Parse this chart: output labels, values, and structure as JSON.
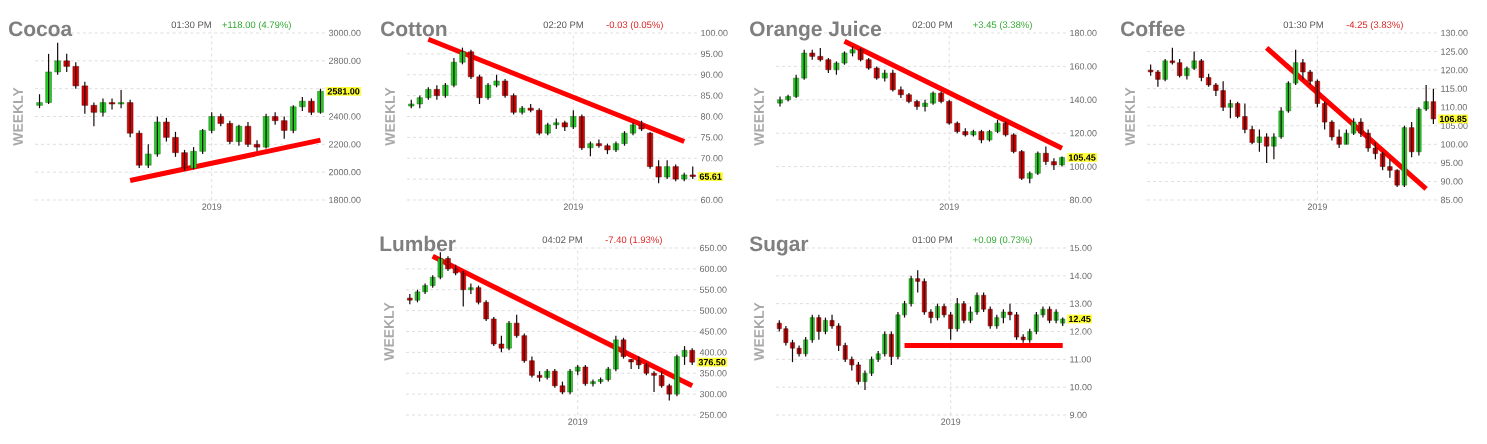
{
  "chart_data": [
    {
      "type": "candlestick",
      "title": "Cocoa",
      "ylabel": "WEEKLY",
      "categories": [
        null,
        null,
        null,
        null,
        null,
        null,
        null,
        null,
        null,
        null,
        null,
        null,
        null,
        null,
        null,
        null,
        null,
        null,
        null,
        "2019",
        null,
        null,
        null,
        null,
        null,
        null,
        null,
        null,
        null,
        null,
        null,
        null
      ],
      "ohlc": [
        [
          2480,
          2560,
          2460,
          2500
        ],
        [
          2500,
          2850,
          2490,
          2720
        ],
        [
          2720,
          2930,
          2700,
          2800
        ],
        [
          2800,
          2850,
          2720,
          2760
        ],
        [
          2760,
          2790,
          2600,
          2620
        ],
        [
          2620,
          2650,
          2420,
          2480
        ],
        [
          2480,
          2500,
          2330,
          2430
        ],
        [
          2430,
          2530,
          2400,
          2500
        ],
        [
          2500,
          2530,
          2450,
          2490
        ],
        [
          2490,
          2590,
          2460,
          2500
        ],
        [
          2500,
          2520,
          2250,
          2280
        ],
        [
          2280,
          2300,
          2030,
          2050
        ],
        [
          2050,
          2200,
          2030,
          2130
        ],
        [
          2130,
          2400,
          2110,
          2360
        ],
        [
          2360,
          2390,
          2220,
          2250
        ],
        [
          2250,
          2290,
          2110,
          2140
        ],
        [
          2140,
          2160,
          2010,
          2030
        ],
        [
          2030,
          2180,
          2020,
          2150
        ],
        [
          2150,
          2310,
          2130,
          2300
        ],
        [
          2300,
          2430,
          2280,
          2400
        ],
        [
          2400,
          2420,
          2330,
          2350
        ],
        [
          2350,
          2370,
          2200,
          2220
        ],
        [
          2220,
          2340,
          2190,
          2330
        ],
        [
          2330,
          2360,
          2180,
          2200
        ],
        [
          2200,
          2230,
          2150,
          2180
        ],
        [
          2180,
          2420,
          2170,
          2400
        ],
        [
          2400,
          2430,
          2340,
          2370
        ],
        [
          2370,
          2400,
          2240,
          2300
        ],
        [
          2300,
          2480,
          2280,
          2470
        ],
        [
          2470,
          2540,
          2440,
          2510
        ],
        [
          2510,
          2530,
          2410,
          2430
        ],
        [
          2430,
          2600,
          2420,
          2581
        ]
      ],
      "series": [
        {
          "type": "line",
          "color": "#ff0000",
          "values": [
            null,
            null,
            null,
            null,
            null,
            null,
            null,
            null,
            null,
            null,
            1940,
            null,
            null,
            null,
            null,
            null,
            null,
            null,
            null,
            null,
            null,
            null,
            null,
            null,
            null,
            null,
            null,
            null,
            null,
            null,
            null,
            2230
          ]
        }
      ],
      "ylim": [
        1800,
        3000
      ],
      "yticks": [
        {
          "value": 1800,
          "label": "1800.00"
        },
        {
          "value": 2000,
          "label": "2000.00"
        },
        {
          "value": 2200,
          "label": "2200.00"
        },
        {
          "value": 2400,
          "label": "2400.00"
        },
        {
          "value": 2600,
          "label": null
        },
        {
          "value": 2800,
          "label": "2800.00"
        },
        {
          "value": 3000,
          "label": "3000.00"
        }
      ],
      "grid": true,
      "annotations": [
        "01:30 PM",
        "+118.00 (4.79%)",
        "2581.00"
      ]
    },
    {
      "type": "candlestick",
      "title": "Cotton",
      "ylabel": "WEEKLY",
      "categories": [
        null,
        null,
        null,
        null,
        null,
        null,
        null,
        null,
        null,
        null,
        null,
        null,
        null,
        null,
        null,
        null,
        null,
        null,
        null,
        "2019",
        null,
        null,
        null,
        null,
        null,
        null,
        null,
        null,
        null,
        null,
        null,
        null,
        null,
        null
      ],
      "ohlc": [
        [
          82.5,
          84,
          82,
          83
        ],
        [
          83,
          85,
          82,
          84.5
        ],
        [
          84.5,
          87,
          84,
          86.5
        ],
        [
          86.5,
          87.5,
          84,
          85
        ],
        [
          85,
          88,
          84.5,
          87.5
        ],
        [
          87.5,
          94,
          87,
          93
        ],
        [
          93,
          96.5,
          92.5,
          95.5
        ],
        [
          95.5,
          96,
          89,
          89.5
        ],
        [
          89.5,
          90,
          83,
          84.5
        ],
        [
          84.5,
          88,
          84,
          87.5
        ],
        [
          87.5,
          90,
          87,
          88.5
        ],
        [
          88.5,
          89,
          84.5,
          85
        ],
        [
          85,
          85.5,
          80.5,
          81
        ],
        [
          81,
          82.5,
          80.5,
          82
        ],
        [
          82,
          83,
          81,
          81.5
        ],
        [
          81.5,
          82,
          75.5,
          76
        ],
        [
          76,
          78.5,
          75.5,
          78
        ],
        [
          78,
          79.5,
          77,
          78.5
        ],
        [
          78.5,
          79,
          76.5,
          77.5
        ],
        [
          77.5,
          81.5,
          77,
          80
        ],
        [
          80,
          80.5,
          72,
          72.5
        ],
        [
          72.5,
          74,
          70.5,
          73.5
        ],
        [
          73.5,
          74.5,
          72.5,
          73
        ],
        [
          73,
          73.5,
          71,
          72
        ],
        [
          72,
          74,
          71.5,
          73.5
        ],
        [
          73.5,
          76.5,
          73,
          76
        ],
        [
          76,
          78.5,
          75.5,
          78
        ],
        [
          78,
          79,
          76.5,
          77
        ],
        [
          76,
          76.3,
          67.5,
          68
        ],
        [
          68,
          69.5,
          64,
          65.5
        ],
        [
          65.5,
          69.5,
          65,
          68
        ],
        [
          68,
          68.5,
          64.5,
          65
        ],
        [
          65,
          66.5,
          64.5,
          66
        ],
        [
          66,
          68,
          65,
          65.61
        ]
      ],
      "series": [
        {
          "type": "line",
          "color": "#ff0000",
          "values": [
            null,
            null,
            98.5,
            null,
            null,
            null,
            null,
            null,
            null,
            null,
            null,
            null,
            null,
            null,
            null,
            null,
            null,
            null,
            null,
            null,
            null,
            null,
            null,
            null,
            null,
            null,
            null,
            null,
            null,
            null,
            null,
            null,
            74,
            null
          ]
        }
      ],
      "ylim": [
        60,
        100
      ],
      "yticks": [
        {
          "value": 60,
          "label": "60.00"
        },
        {
          "value": 65,
          "label": null
        },
        {
          "value": 70,
          "label": "70.00"
        },
        {
          "value": 75,
          "label": "75.00"
        },
        {
          "value": 80,
          "label": "80.00"
        },
        {
          "value": 85,
          "label": "85.00"
        },
        {
          "value": 90,
          "label": "90.00"
        },
        {
          "value": 95,
          "label": "95.00"
        },
        {
          "value": 100,
          "label": "100.00"
        }
      ],
      "grid": true,
      "annotations": [
        "02:20 PM",
        "-0.03 (0.05%)",
        "65.61"
      ]
    },
    {
      "type": "candlestick",
      "title": "Orange Juice",
      "ylabel": "WEEKLY",
      "categories": [
        null,
        null,
        null,
        null,
        null,
        null,
        null,
        null,
        null,
        null,
        null,
        null,
        null,
        null,
        null,
        null,
        null,
        null,
        null,
        null,
        null,
        "2019",
        null,
        null,
        null,
        null,
        null,
        null,
        null,
        null,
        null,
        null,
        null,
        null,
        null,
        null
      ],
      "ohlc": [
        [
          138,
          142,
          136,
          140
        ],
        [
          140,
          143,
          139,
          142
        ],
        [
          142,
          155,
          141,
          153
        ],
        [
          153,
          170,
          152,
          168
        ],
        [
          168,
          170,
          164,
          166
        ],
        [
          166,
          171,
          163,
          164
        ],
        [
          164,
          165,
          156,
          158
        ],
        [
          158,
          163,
          155,
          162
        ],
        [
          162,
          169,
          161,
          168
        ],
        [
          168,
          172,
          166,
          170
        ],
        [
          170,
          171,
          163,
          164
        ],
        [
          164,
          165,
          158,
          159
        ],
        [
          159,
          160,
          152,
          153
        ],
        [
          153,
          158,
          151,
          156
        ],
        [
          156,
          158,
          145,
          146
        ],
        [
          146,
          148,
          141,
          143
        ],
        [
          143,
          144,
          138,
          139
        ],
        [
          139,
          140,
          134,
          136
        ],
        [
          136,
          140,
          133,
          138
        ],
        [
          138,
          145,
          137,
          144
        ],
        [
          144,
          145,
          138,
          139
        ],
        [
          139,
          140,
          125,
          126
        ],
        [
          126,
          127,
          120,
          121
        ],
        [
          121,
          123,
          118,
          119
        ],
        [
          119,
          122,
          118,
          121
        ],
        [
          121,
          122,
          114,
          116
        ],
        [
          116,
          122,
          115,
          121
        ],
        [
          121,
          128,
          120,
          126
        ],
        [
          126,
          127,
          118,
          119
        ],
        [
          119,
          120,
          108,
          109
        ],
        [
          109,
          110,
          92,
          93
        ],
        [
          93,
          97,
          90,
          96
        ],
        [
          96,
          109,
          95,
          108
        ],
        [
          108,
          112,
          101,
          103
        ],
        [
          103,
          105,
          98,
          101
        ],
        [
          101,
          106,
          100,
          105.45
        ]
      ],
      "series": [
        {
          "type": "line",
          "color": "#ff0000",
          "values": [
            null,
            null,
            null,
            null,
            null,
            null,
            null,
            null,
            175,
            null,
            null,
            null,
            null,
            null,
            null,
            null,
            null,
            null,
            null,
            null,
            null,
            null,
            null,
            null,
            null,
            null,
            null,
            null,
            null,
            null,
            null,
            null,
            null,
            null,
            null,
            111
          ]
        }
      ],
      "ylim": [
        80,
        180
      ],
      "yticks": [
        {
          "value": 80,
          "label": "80.00"
        },
        {
          "value": 100,
          "label": "100.00"
        },
        {
          "value": 120,
          "label": "120.00"
        },
        {
          "value": 140,
          "label": "140.00"
        },
        {
          "value": 160,
          "label": "160.00"
        },
        {
          "value": 180,
          "label": "180.00"
        }
      ],
      "grid": true,
      "annotations": [
        "02:00 PM",
        "+3.45 (3.38%)",
        "105.45"
      ]
    },
    {
      "type": "candlestick",
      "title": "Coffee",
      "ylabel": "WEEKLY",
      "categories": [
        null,
        null,
        null,
        null,
        null,
        null,
        null,
        null,
        null,
        null,
        null,
        null,
        null,
        null,
        null,
        null,
        null,
        null,
        null,
        null,
        null,
        null,
        null,
        "2019",
        null,
        null,
        null,
        null,
        null,
        null,
        null,
        null,
        null,
        null,
        null,
        null,
        null,
        null,
        null,
        null
      ],
      "ohlc": [
        [
          120,
          121.5,
          118.5,
          119.5
        ],
        [
          119.5,
          120,
          115.5,
          117.5
        ],
        [
          117.5,
          123,
          117,
          122.5
        ],
        [
          122.5,
          126,
          121.5,
          122
        ],
        [
          122,
          123,
          118,
          118.5
        ],
        [
          118.5,
          121,
          117.5,
          120.5
        ],
        [
          120.5,
          125,
          120,
          122.5
        ],
        [
          122.5,
          123,
          117,
          118
        ],
        [
          118,
          119,
          115.5,
          116
        ],
        [
          116,
          116.5,
          113,
          114.5
        ],
        [
          114.5,
          117,
          109,
          110
        ],
        [
          110,
          112,
          107,
          111
        ],
        [
          111,
          111.5,
          107,
          107.5
        ],
        [
          107.5,
          111,
          103,
          104
        ],
        [
          104,
          105,
          100,
          100.5
        ],
        [
          100.5,
          104,
          98,
          102
        ],
        [
          102,
          103,
          95,
          99.5
        ],
        [
          99.5,
          103,
          96,
          102
        ],
        [
          102,
          110,
          101.5,
          109
        ],
        [
          109,
          117,
          108.5,
          116.5
        ],
        [
          116.5,
          125.5,
          116,
          122
        ],
        [
          122,
          123,
          117.5,
          119.5
        ],
        [
          119.5,
          120,
          116,
          117
        ],
        [
          117,
          117.5,
          110,
          111
        ],
        [
          111,
          111.5,
          104,
          106
        ],
        [
          106,
          106.5,
          101,
          102
        ],
        [
          102,
          104,
          99,
          100
        ],
        [
          100,
          104,
          100,
          103
        ],
        [
          103,
          107,
          102.5,
          106
        ],
        [
          106,
          107,
          102,
          103
        ],
        [
          103,
          104,
          98,
          99
        ],
        [
          99,
          100.5,
          96,
          97.5
        ],
        [
          97.5,
          98,
          93,
          94
        ],
        [
          94,
          96,
          91,
          93
        ],
        [
          93,
          93.3,
          88.5,
          89
        ],
        [
          89,
          105,
          88.5,
          104.5
        ],
        [
          104.5,
          106,
          96.5,
          98
        ],
        [
          98,
          110,
          97,
          109.5
        ],
        [
          109.5,
          116,
          109,
          111.5
        ],
        [
          111.5,
          115,
          105.5,
          106.85
        ]
      ],
      "series": [
        {
          "type": "line",
          "color": "#ff0000",
          "values": [
            null,
            null,
            null,
            null,
            null,
            null,
            null,
            null,
            null,
            null,
            null,
            null,
            null,
            null,
            null,
            null,
            126,
            null,
            null,
            null,
            null,
            null,
            null,
            null,
            null,
            null,
            null,
            null,
            null,
            null,
            null,
            null,
            null,
            null,
            null,
            null,
            null,
            null,
            88,
            null
          ]
        }
      ],
      "ylim": [
        85,
        130
      ],
      "yticks": [
        {
          "value": 85,
          "label": "85.00"
        },
        {
          "value": 90,
          "label": "90.00"
        },
        {
          "value": 95,
          "label": "95.00"
        },
        {
          "value": 100,
          "label": "100.00"
        },
        {
          "value": 105,
          "label": "105.00"
        },
        {
          "value": 110,
          "label": "110.00"
        },
        {
          "value": 115,
          "label": "115.00"
        },
        {
          "value": 120,
          "label": "120.00"
        },
        {
          "value": 125,
          "label": "125.00"
        },
        {
          "value": 130,
          "label": "130.00"
        }
      ],
      "grid": true,
      "annotations": [
        "01:30 PM",
        "-4.25 (3.83%)",
        "106.85"
      ]
    },
    {
      "type": "candlestick",
      "title": "Lumber",
      "ylabel": "WEEKLY",
      "categories": [
        null,
        null,
        null,
        null,
        null,
        null,
        null,
        null,
        null,
        null,
        null,
        null,
        null,
        null,
        null,
        null,
        null,
        null,
        null,
        null,
        null,
        null,
        "2019",
        null,
        null,
        null,
        null,
        null,
        null,
        null,
        null,
        null,
        null,
        null,
        null,
        null,
        null,
        null
      ],
      "ohlc": [
        [
          530,
          540,
          515,
          525
        ],
        [
          525,
          550,
          520,
          545
        ],
        [
          545,
          565,
          540,
          560
        ],
        [
          560,
          585,
          555,
          580
        ],
        [
          580,
          640,
          575,
          625
        ],
        [
          625,
          630,
          595,
          600
        ],
        [
          600,
          610,
          585,
          590
        ],
        [
          590,
          595,
          510,
          550
        ],
        [
          550,
          565,
          540,
          555
        ],
        [
          555,
          560,
          515,
          520
        ],
        [
          520,
          525,
          475,
          480
        ],
        [
          480,
          485,
          415,
          420
        ],
        [
          420,
          440,
          400,
          410
        ],
        [
          410,
          475,
          405,
          470
        ],
        [
          470,
          490,
          435,
          440
        ],
        [
          440,
          445,
          375,
          380
        ],
        [
          380,
          390,
          340,
          345
        ],
        [
          345,
          355,
          330,
          340
        ],
        [
          340,
          360,
          335,
          355
        ],
        [
          355,
          360,
          315,
          320
        ],
        [
          320,
          330,
          300,
          305
        ],
        [
          305,
          360,
          300,
          355
        ],
        [
          355,
          370,
          345,
          365
        ],
        [
          365,
          370,
          320,
          325
        ],
        [
          325,
          335,
          318,
          330
        ],
        [
          330,
          340,
          325,
          335
        ],
        [
          335,
          365,
          330,
          360
        ],
        [
          360,
          440,
          355,
          430
        ],
        [
          430,
          435,
          385,
          390
        ],
        [
          383,
          384,
          360,
          377
        ],
        [
          380,
          390,
          360,
          370
        ],
        [
          370,
          375,
          345,
          350
        ],
        [
          350,
          355,
          305,
          345
        ],
        [
          345,
          355,
          315,
          320
        ],
        [
          320,
          325,
          285,
          300
        ],
        [
          300,
          395,
          295,
          390
        ],
        [
          390,
          415,
          370,
          405
        ],
        [
          405,
          410,
          370,
          376.5
        ]
      ],
      "series": [
        {
          "type": "line",
          "color": "#ff0000",
          "values": [
            null,
            null,
            null,
            630,
            null,
            null,
            null,
            null,
            null,
            null,
            null,
            null,
            null,
            null,
            null,
            null,
            null,
            null,
            null,
            null,
            null,
            null,
            null,
            null,
            null,
            null,
            null,
            null,
            null,
            null,
            null,
            null,
            null,
            null,
            null,
            null,
            null,
            320
          ]
        }
      ],
      "ylim": [
        250,
        650
      ],
      "yticks": [
        {
          "value": 250,
          "label": "250.00"
        },
        {
          "value": 300,
          "label": "300.00"
        },
        {
          "value": 350,
          "label": "350.00"
        },
        {
          "value": 400,
          "label": "400.00"
        },
        {
          "value": 450,
          "label": "450.00"
        },
        {
          "value": 500,
          "label": "500.00"
        },
        {
          "value": 550,
          "label": "550.00"
        },
        {
          "value": 600,
          "label": "600.00"
        },
        {
          "value": 650,
          "label": "650.00"
        }
      ],
      "grid": true,
      "annotations": [
        "04:02 PM",
        "-7.40 (1.93%)",
        "376.50"
      ]
    },
    {
      "type": "candlestick",
      "title": "Sugar",
      "ylabel": "WEEKLY",
      "categories": [
        null,
        null,
        null,
        null,
        null,
        null,
        null,
        null,
        null,
        null,
        null,
        null,
        null,
        null,
        null,
        null,
        null,
        null,
        null,
        null,
        null,
        null,
        null,
        null,
        null,
        null,
        "2019",
        null,
        null,
        null,
        null,
        null,
        null,
        null,
        null,
        null,
        null,
        null,
        null,
        null,
        null,
        null,
        null,
        null
      ],
      "ohlc": [
        [
          12.3,
          12.4,
          12.0,
          12.1
        ],
        [
          12.1,
          12.2,
          11.5,
          11.6
        ],
        [
          11.6,
          11.7,
          10.9,
          11.4
        ],
        [
          11.4,
          11.5,
          11.1,
          11.2
        ],
        [
          11.2,
          11.8,
          11.1,
          11.7
        ],
        [
          11.7,
          12.6,
          11.6,
          12.5
        ],
        [
          12.5,
          12.6,
          11.7,
          12.0
        ],
        [
          12.0,
          12.5,
          11.9,
          12.4
        ],
        [
          12.4,
          12.6,
          12.1,
          12.2
        ],
        [
          12.2,
          12.3,
          11.3,
          11.5
        ],
        [
          11.5,
          11.6,
          10.9,
          11.0
        ],
        [
          11.0,
          11.1,
          10.6,
          10.8
        ],
        [
          10.8,
          10.9,
          10.1,
          10.2
        ],
        [
          10.2,
          10.6,
          9.9,
          10.5
        ],
        [
          10.5,
          11.1,
          10.4,
          11.0
        ],
        [
          11.0,
          11.3,
          10.9,
          11.2
        ],
        [
          11.2,
          12.0,
          11.1,
          11.9
        ],
        [
          11.9,
          12.0,
          10.8,
          11.1
        ],
        [
          11.1,
          12.7,
          11.0,
          12.6
        ],
        [
          12.6,
          13.1,
          12.5,
          13.0
        ],
        [
          13.0,
          14.0,
          12.9,
          13.9
        ],
        [
          13.9,
          14.2,
          13.4,
          13.8
        ],
        [
          13.8,
          13.9,
          12.6,
          12.7
        ],
        [
          12.7,
          12.8,
          12.3,
          12.5
        ],
        [
          12.5,
          13.0,
          12.4,
          12.9
        ],
        [
          12.9,
          13.0,
          12.5,
          12.6
        ],
        [
          12.6,
          12.7,
          11.7,
          12.1
        ],
        [
          12.1,
          13.2,
          12.0,
          13.0
        ],
        [
          13.0,
          13.1,
          12.3,
          12.4
        ],
        [
          12.4,
          12.9,
          12.3,
          12.7
        ],
        [
          12.7,
          13.4,
          12.6,
          13.3
        ],
        [
          13.3,
          13.4,
          12.7,
          12.8
        ],
        [
          12.8,
          12.9,
          12.1,
          12.2
        ],
        [
          12.2,
          12.6,
          12.1,
          12.5
        ],
        [
          12.5,
          12.8,
          12.3,
          12.7
        ],
        [
          12.7,
          13.0,
          12.4,
          12.6
        ],
        [
          12.6,
          12.7,
          11.7,
          11.8
        ],
        [
          11.8,
          11.9,
          11.6,
          11.7
        ],
        [
          11.7,
          12.1,
          11.6,
          12.0
        ],
        [
          12.0,
          12.7,
          11.9,
          12.6
        ],
        [
          12.6,
          12.9,
          12.5,
          12.8
        ],
        [
          12.8,
          12.9,
          12.3,
          12.4
        ],
        [
          12.4,
          12.8,
          12.3,
          12.7
        ],
        [
          12.3,
          12.5,
          12.2,
          12.45
        ]
      ],
      "series": [
        {
          "type": "line",
          "color": "#ff0000",
          "values": [
            null,
            null,
            null,
            null,
            null,
            null,
            null,
            null,
            null,
            null,
            null,
            null,
            null,
            null,
            null,
            null,
            null,
            null,
            null,
            11.5,
            null,
            null,
            null,
            null,
            null,
            null,
            null,
            null,
            null,
            null,
            null,
            null,
            null,
            null,
            null,
            null,
            null,
            null,
            null,
            null,
            null,
            null,
            null,
            11.5
          ]
        }
      ],
      "ylim": [
        9,
        15
      ],
      "yticks": [
        {
          "value": 9,
          "label": "9.00"
        },
        {
          "value": 10,
          "label": "10.00"
        },
        {
          "value": 11,
          "label": "11.00"
        },
        {
          "value": 12,
          "label": "12.00"
        },
        {
          "value": 13,
          "label": "13.00"
        },
        {
          "value": 14,
          "label": "14.00"
        },
        {
          "value": 15,
          "label": "15.00"
        }
      ],
      "grid": true,
      "annotations": [
        "01:00 PM",
        "+0.09 (0.73%)",
        "12.45"
      ]
    }
  ]
}
